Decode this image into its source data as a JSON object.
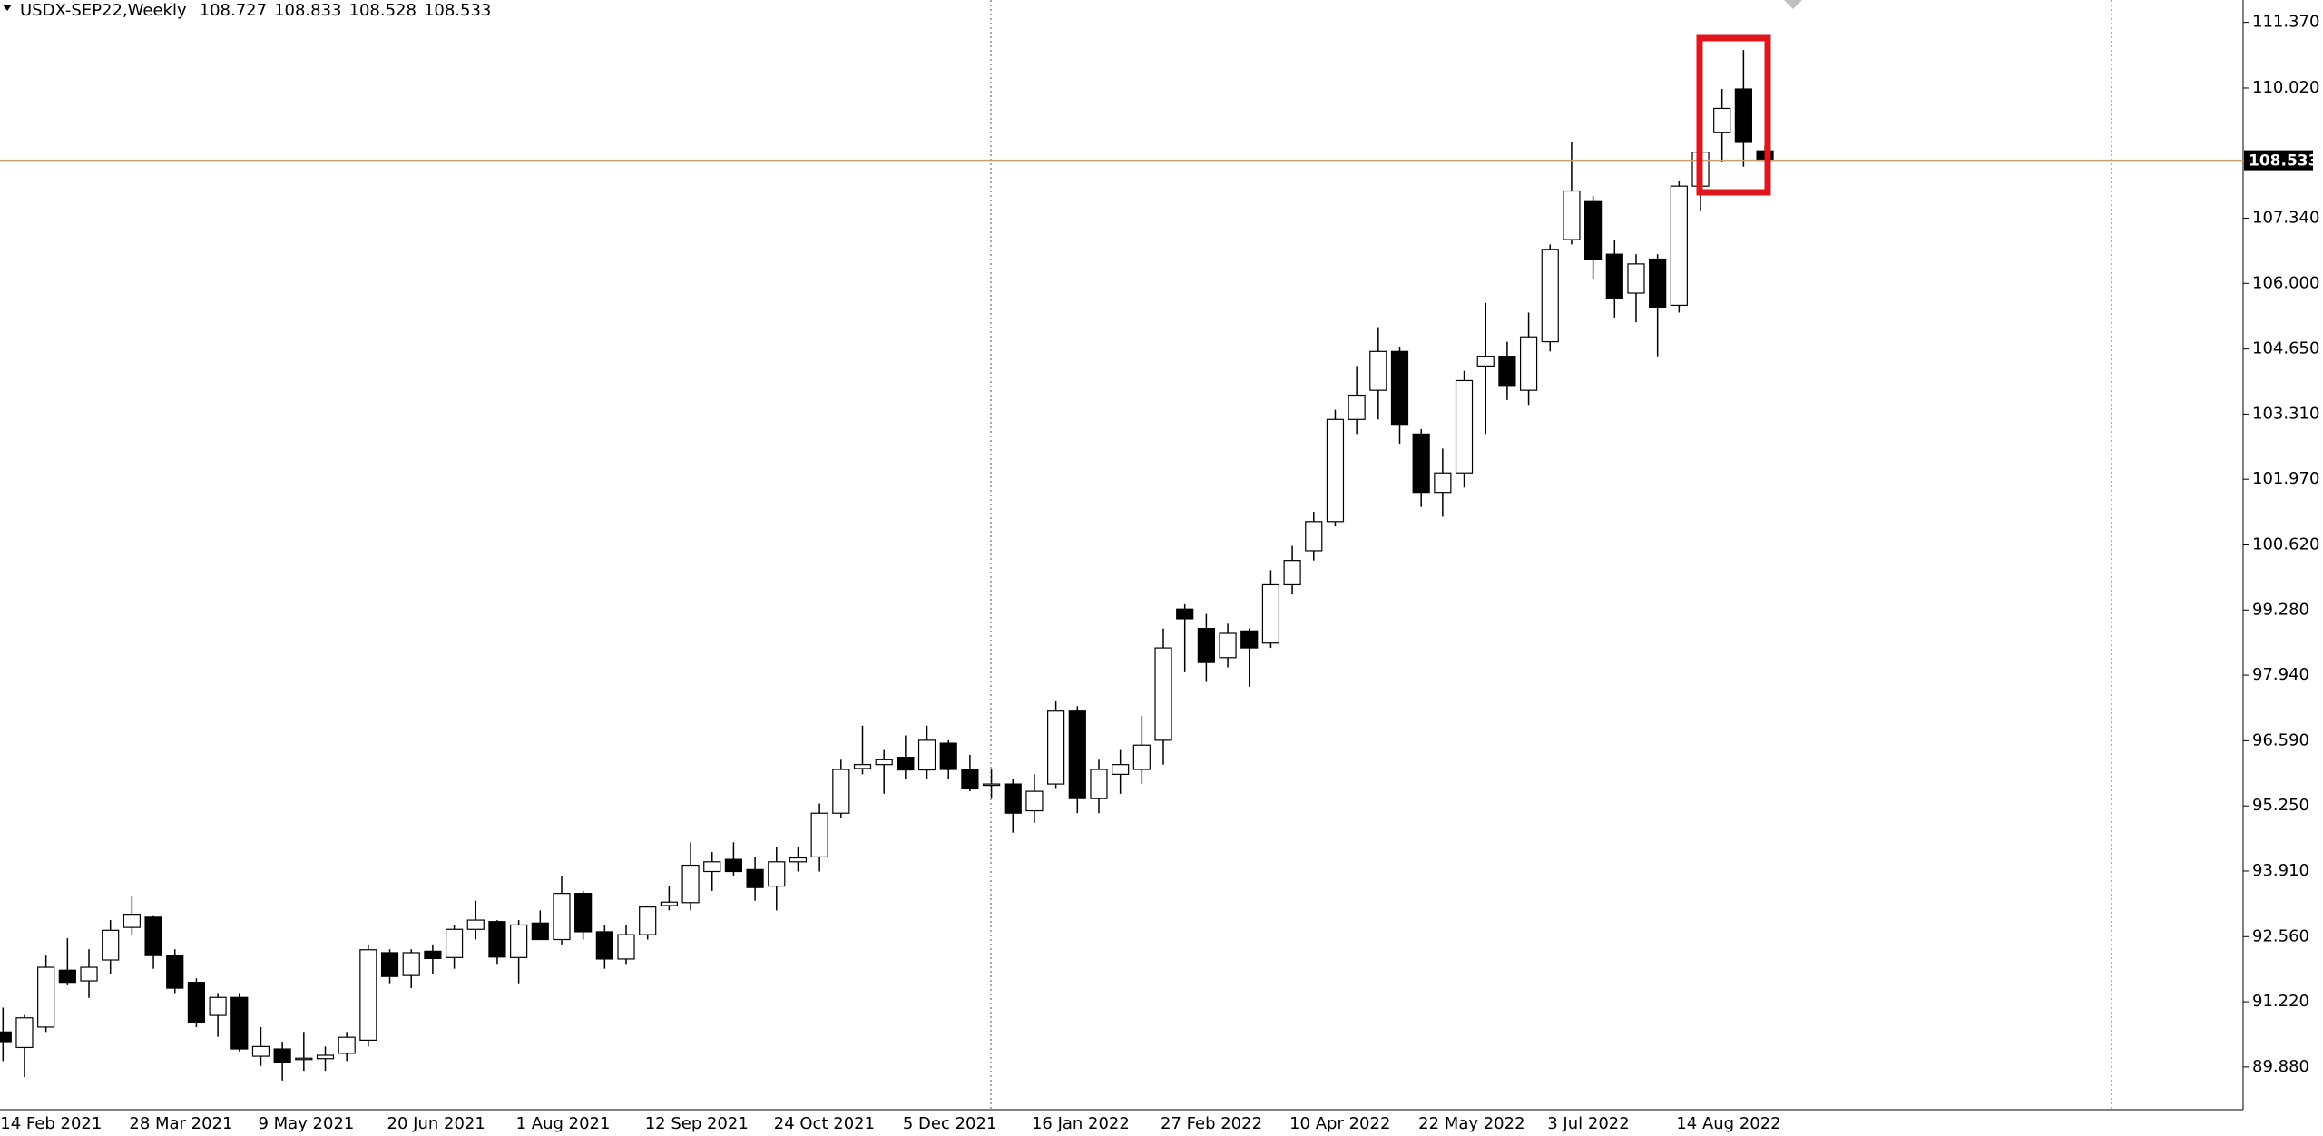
{
  "chart_data": {
    "type": "candlestick",
    "title": "USDX-SEP22,Weekly",
    "categories": [
      "14 Feb 2021",
      null,
      null,
      null,
      null,
      null,
      "28 Mar 2021",
      null,
      null,
      null,
      null,
      null,
      "9 May 2021",
      null,
      null,
      null,
      null,
      null,
      "20 Jun 2021",
      null,
      null,
      null,
      null,
      null,
      "1 Aug 2021",
      null,
      null,
      null,
      null,
      null,
      "12 Sep 2021",
      null,
      null,
      null,
      null,
      null,
      "24 Oct 2021",
      null,
      null,
      null,
      null,
      null,
      "5 Dec 2021",
      null,
      null,
      null,
      null,
      null,
      "16 Jan 2022",
      null,
      null,
      null,
      null,
      null,
      "27 Feb 2022",
      null,
      null,
      null,
      null,
      null,
      "10 Apr 2022",
      null,
      null,
      null,
      null,
      null,
      "22 May 2022",
      null,
      null,
      null,
      null,
      null,
      "3 Jul 2022",
      null,
      null,
      null,
      null,
      null,
      "14 Aug 2022",
      null,
      null,
      null,
      null
    ],
    "open": [
      90.6,
      90.28,
      90.7,
      91.87,
      91.65,
      92.08,
      92.75,
      92.96,
      92.17,
      91.62,
      90.94,
      91.31,
      90.1,
      90.25,
      90.04,
      90.05,
      90.16,
      90.43,
      92.23,
      91.76,
      92.26,
      92.13,
      92.71,
      92.87,
      92.13,
      92.84,
      92.5,
      93.45,
      92.66,
      92.1,
      92.6,
      93.2,
      93.26,
      93.9,
      94.15,
      93.94,
      93.6,
      94.1,
      94.2,
      95.1,
      96.02,
      96.1,
      96.25,
      95.99,
      96.54,
      96.0,
      95.68,
      95.7,
      95.15,
      95.7,
      97.2,
      95.4,
      95.9,
      96.0,
      96.6,
      99.3,
      98.9,
      98.3,
      98.85,
      98.6,
      99.8,
      100.5,
      101.1,
      103.2,
      103.8,
      104.6,
      102.9,
      101.7,
      102.1,
      104.3,
      104.5,
      103.8,
      104.8,
      106.9,
      107.7,
      106.6,
      105.8,
      106.5,
      105.55,
      108.0,
      109.1,
      110.0,
      108.727
    ],
    "high": [
      91.1,
      90.95,
      92.17,
      92.53,
      92.3,
      92.9,
      93.4,
      93.0,
      92.3,
      91.7,
      91.4,
      91.4,
      90.7,
      90.4,
      90.6,
      90.3,
      90.6,
      92.4,
      92.3,
      92.3,
      92.4,
      92.8,
      93.3,
      92.9,
      92.9,
      93.1,
      93.8,
      93.5,
      92.8,
      92.8,
      93.2,
      93.6,
      94.5,
      94.3,
      94.5,
      94.2,
      94.4,
      94.4,
      95.3,
      96.2,
      96.9,
      96.4,
      96.7,
      96.9,
      96.6,
      96.3,
      96.0,
      95.8,
      95.9,
      97.4,
      97.3,
      96.2,
      96.4,
      97.1,
      98.9,
      99.4,
      99.2,
      99.0,
      98.9,
      100.1,
      100.6,
      101.3,
      103.4,
      104.3,
      105.1,
      104.7,
      103.0,
      102.6,
      104.2,
      105.6,
      104.8,
      105.4,
      106.8,
      108.9,
      107.8,
      106.9,
      106.6,
      106.6,
      108.1,
      108.9,
      110.0,
      110.8,
      108.833
    ],
    "low": [
      90.0,
      89.67,
      90.6,
      91.56,
      91.3,
      91.8,
      92.6,
      91.9,
      91.4,
      90.7,
      90.5,
      90.2,
      89.9,
      89.6,
      89.8,
      89.8,
      90.0,
      90.3,
      91.6,
      91.5,
      91.8,
      91.9,
      92.5,
      92.0,
      91.6,
      92.5,
      92.4,
      92.5,
      91.9,
      92.0,
      92.5,
      93.1,
      93.1,
      93.5,
      93.8,
      93.3,
      93.1,
      93.9,
      93.9,
      95.0,
      95.9,
      95.5,
      95.8,
      95.8,
      95.8,
      95.55,
      95.4,
      94.7,
      94.9,
      95.6,
      95.1,
      95.1,
      95.5,
      95.7,
      96.1,
      98.0,
      97.8,
      98.1,
      97.7,
      98.5,
      99.6,
      100.3,
      101.0,
      102.9,
      103.2,
      102.7,
      101.4,
      101.2,
      101.8,
      102.9,
      103.6,
      103.5,
      104.6,
      106.8,
      106.1,
      105.3,
      105.2,
      104.5,
      105.4,
      107.5,
      108.5,
      108.4,
      108.528
    ],
    "close": [
      90.4,
      90.89,
      91.93,
      91.62,
      91.93,
      92.69,
      93.02,
      92.17,
      91.5,
      90.8,
      91.31,
      90.25,
      90.3,
      89.98,
      90.06,
      90.12,
      90.49,
      92.29,
      91.74,
      92.23,
      92.11,
      92.71,
      92.9,
      92.14,
      92.8,
      92.5,
      93.45,
      92.66,
      92.1,
      92.6,
      93.17,
      93.27,
      94.03,
      94.1,
      93.9,
      93.57,
      94.1,
      94.18,
      95.1,
      96.0,
      96.1,
      96.2,
      95.99,
      96.6,
      96.0,
      95.6,
      95.7,
      95.1,
      95.55,
      97.2,
      95.4,
      96.0,
      96.1,
      96.5,
      98.5,
      99.1,
      98.2,
      98.8,
      98.5,
      99.8,
      100.3,
      101.1,
      103.2,
      103.7,
      104.6,
      103.1,
      101.7,
      102.1,
      104.0,
      104.5,
      103.9,
      104.9,
      106.7,
      107.9,
      106.5,
      105.7,
      106.4,
      105.5,
      108.0,
      108.7,
      109.6,
      108.9,
      108.533
    ],
    "up_color": "#ffffff",
    "down_color": "#000000",
    "ylim": [
      89.0,
      111.83
    ],
    "yticks": [
      {
        "value": 89.88,
        "label": "89.880"
      },
      {
        "value": 91.22,
        "label": "91.220"
      },
      {
        "value": 92.56,
        "label": "92.560"
      },
      {
        "value": 93.91,
        "label": "93.910"
      },
      {
        "value": 95.25,
        "label": "95.250"
      },
      {
        "value": 96.59,
        "label": "96.590"
      },
      {
        "value": 97.94,
        "label": "97.940"
      },
      {
        "value": 99.28,
        "label": "99.280"
      },
      {
        "value": 100.62,
        "label": "100.620"
      },
      {
        "value": 101.97,
        "label": "101.970"
      },
      {
        "value": 103.31,
        "label": "103.310"
      },
      {
        "value": 104.65,
        "label": "104.650"
      },
      {
        "value": 106.0,
        "label": "106.000"
      },
      {
        "value": 107.34,
        "label": "107.340"
      },
      {
        "value": 110.02,
        "label": "110.020"
      },
      {
        "value": 111.37,
        "label": "111.370"
      }
    ]
  }
}
